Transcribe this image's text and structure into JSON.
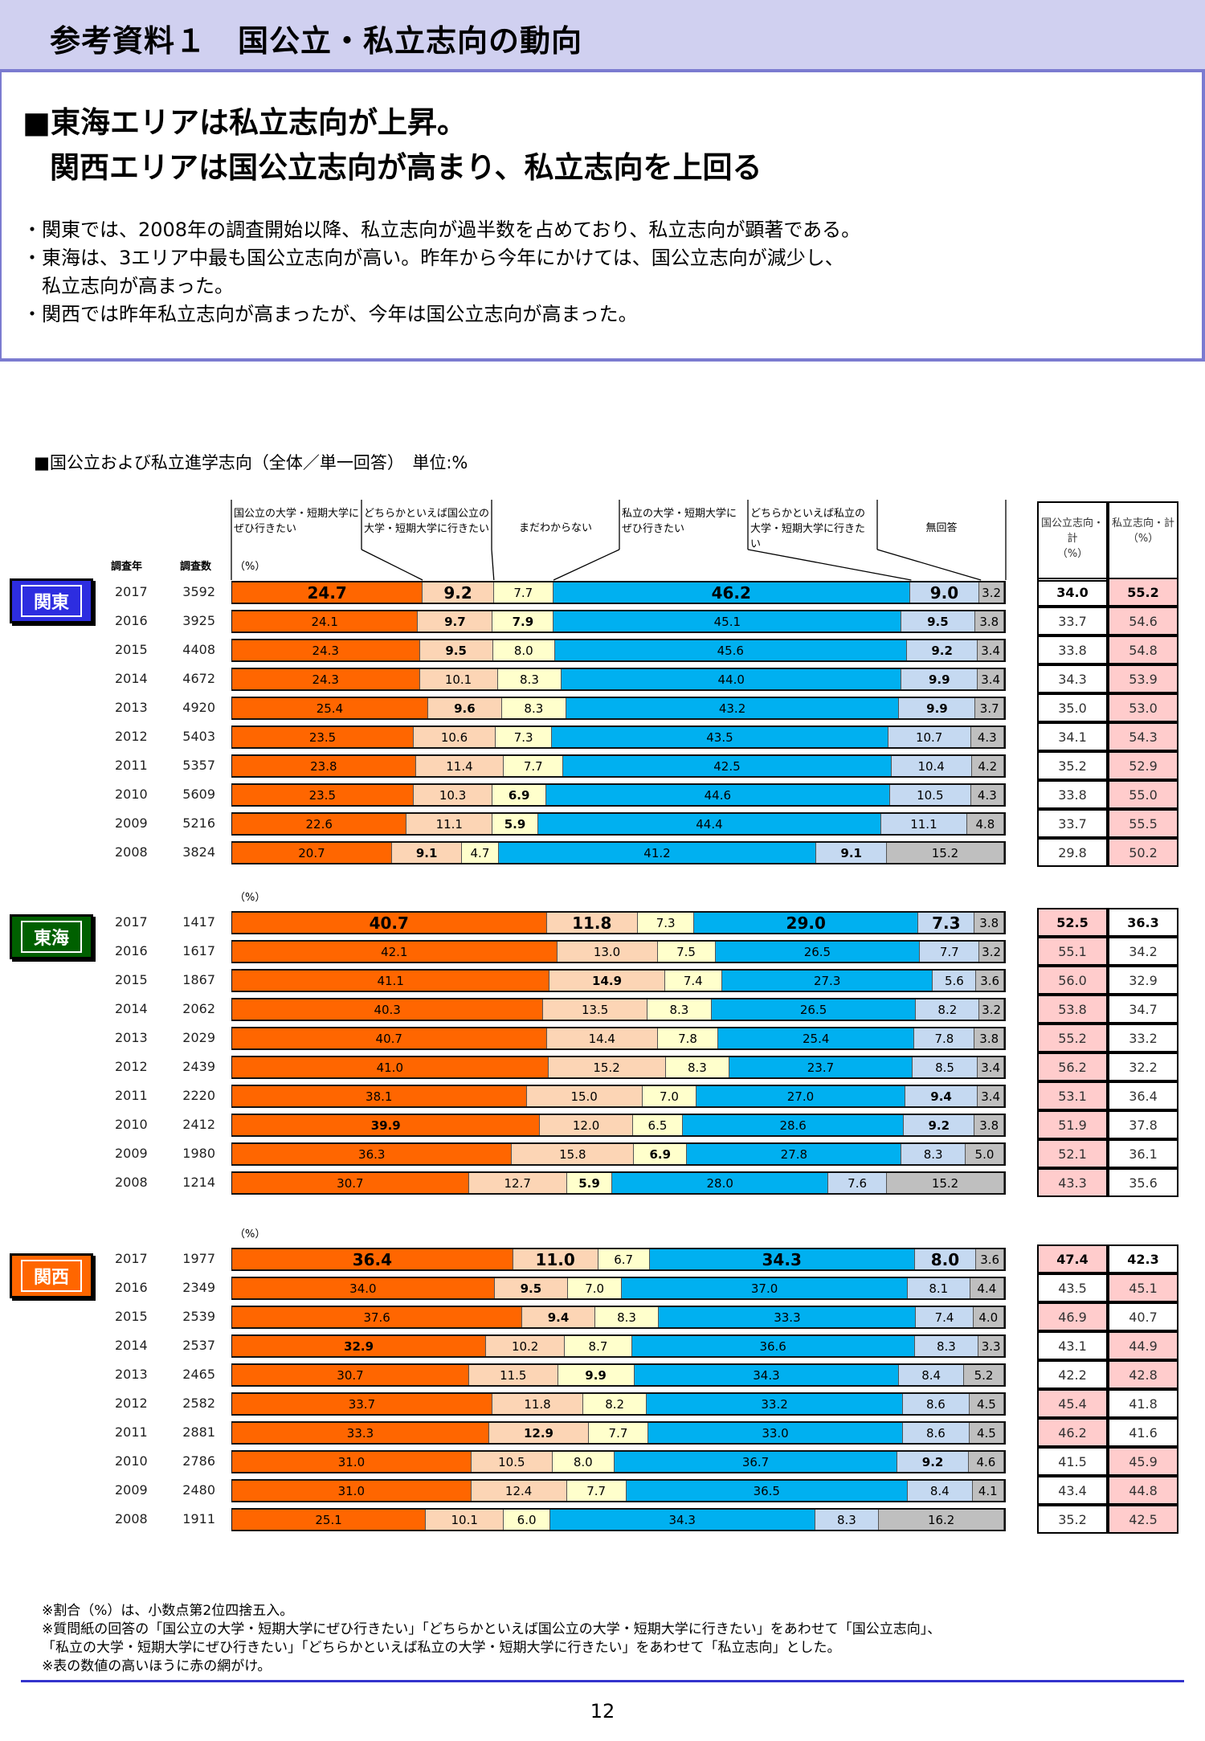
{
  "header": {
    "title": "参考資料１　国公立・私立志向の動向"
  },
  "headline": {
    "line1": "■東海エリアは私立志向が上昇。",
    "line2": "関西エリアは国公立志向が高まり、私立志向を上回る"
  },
  "bullets": [
    "・関東では、2008年の調査開始以降、私立志向が過半数を占めており、私立志向が顕著である。",
    "・東海は、3エリア中最も国公立志向が高い。昨年から今年にかけては、国公立志向が減少し、",
    "　私立志向が高まった。",
    "・関西では昨年私立志向が高まったが、今年は国公立志向が高まった。"
  ],
  "section_title": "■国公立および私立進学志向（全体／単一回答）　単位:%",
  "columns": [
    "国公立の大学・短期大学にぜひ行きたい",
    "どちらかといえば国公立の大学・短期大学に行きたい",
    "まだわからない",
    "私立の大学・短期大学にぜひ行きたい",
    "どちらかといえば私立の大学・短期大学に行きたい",
    "無回答"
  ],
  "totals_headers": [
    "国公立志向・計\n（%）",
    "私立志向・計\n（%）"
  ],
  "year_header": "調査年",
  "n_header": "調査数",
  "pct_label": "（%）",
  "colors": {
    "seg": [
      "#ff6600",
      "#fcd5b5",
      "#ffffcc",
      "#00b0f0",
      "#c5d9f1",
      "#bfbfbf"
    ],
    "highlight": "#ffcccc"
  },
  "regions": [
    {
      "name": "関東",
      "color": "#2d2de0",
      "rows": [
        {
          "year": "2017",
          "n": "3592",
          "values": [
            24.7,
            9.2,
            7.7,
            46.2,
            9.0,
            3.2
          ],
          "public": "34.0",
          "private": "55.2",
          "bold": [
            0,
            1,
            3,
            4
          ],
          "hi": "private"
        },
        {
          "year": "2016",
          "n": "3925",
          "values": [
            24.1,
            9.7,
            7.9,
            45.1,
            9.5,
            3.8
          ],
          "public": "33.7",
          "private": "54.6",
          "bold": [
            1,
            2,
            4
          ],
          "hi": "private"
        },
        {
          "year": "2015",
          "n": "4408",
          "values": [
            24.3,
            9.5,
            8.0,
            45.6,
            9.2,
            3.4
          ],
          "public": "33.8",
          "private": "54.8",
          "bold": [
            1,
            4
          ],
          "hi": "private"
        },
        {
          "year": "2014",
          "n": "4672",
          "values": [
            24.3,
            10.1,
            8.3,
            44.0,
            9.9,
            3.4
          ],
          "public": "34.3",
          "private": "53.9",
          "bold": [
            4
          ],
          "hi": "private"
        },
        {
          "year": "2013",
          "n": "4920",
          "values": [
            25.4,
            9.6,
            8.3,
            43.2,
            9.9,
            3.7
          ],
          "public": "35.0",
          "private": "53.0",
          "bold": [
            1,
            4
          ],
          "hi": "private"
        },
        {
          "year": "2012",
          "n": "5403",
          "values": [
            23.5,
            10.6,
            7.3,
            43.5,
            10.7,
            4.3
          ],
          "public": "34.1",
          "private": "54.3",
          "bold": [],
          "hi": "private"
        },
        {
          "year": "2011",
          "n": "5357",
          "values": [
            23.8,
            11.4,
            7.7,
            42.5,
            10.4,
            4.2
          ],
          "public": "35.2",
          "private": "52.9",
          "bold": [],
          "hi": "private"
        },
        {
          "year": "2010",
          "n": "5609",
          "values": [
            23.5,
            10.3,
            6.9,
            44.6,
            10.5,
            4.3
          ],
          "public": "33.8",
          "private": "55.0",
          "bold": [
            2
          ],
          "hi": "private"
        },
        {
          "year": "2009",
          "n": "5216",
          "values": [
            22.6,
            11.1,
            5.9,
            44.4,
            11.1,
            4.8
          ],
          "public": "33.7",
          "private": "55.5",
          "bold": [
            2
          ],
          "hi": "private"
        },
        {
          "year": "2008",
          "n": "3824",
          "values": [
            20.7,
            9.1,
            4.7,
            41.2,
            9.1,
            15.2
          ],
          "public": "29.8",
          "private": "50.2",
          "bold": [
            1,
            4
          ],
          "hi": "private"
        }
      ]
    },
    {
      "name": "東海",
      "color": "#006000",
      "rows": [
        {
          "year": "2017",
          "n": "1417",
          "values": [
            40.7,
            11.8,
            7.3,
            29.0,
            7.3,
            3.8
          ],
          "public": "52.5",
          "private": "36.3",
          "bold": [
            0,
            1,
            3,
            4
          ],
          "hi": "public"
        },
        {
          "year": "2016",
          "n": "1617",
          "values": [
            42.1,
            13.0,
            7.5,
            26.5,
            7.7,
            3.2
          ],
          "public": "55.1",
          "private": "34.2",
          "bold": [],
          "hi": "public"
        },
        {
          "year": "2015",
          "n": "1867",
          "values": [
            41.1,
            14.9,
            7.4,
            27.3,
            5.6,
            3.6
          ],
          "public": "56.0",
          "private": "32.9",
          "bold": [
            1
          ],
          "hi": "public"
        },
        {
          "year": "2014",
          "n": "2062",
          "values": [
            40.3,
            13.5,
            8.3,
            26.5,
            8.2,
            3.2
          ],
          "public": "53.8",
          "private": "34.7",
          "bold": [],
          "hi": "public"
        },
        {
          "year": "2013",
          "n": "2029",
          "values": [
            40.7,
            14.4,
            7.8,
            25.4,
            7.8,
            3.8
          ],
          "public": "55.2",
          "private": "33.2",
          "bold": [],
          "hi": "public"
        },
        {
          "year": "2012",
          "n": "2439",
          "values": [
            41.0,
            15.2,
            8.3,
            23.7,
            8.5,
            3.4
          ],
          "public": "56.2",
          "private": "32.2",
          "bold": [],
          "hi": "public"
        },
        {
          "year": "2011",
          "n": "2220",
          "values": [
            38.1,
            15.0,
            7.0,
            27.0,
            9.4,
            3.4
          ],
          "public": "53.1",
          "private": "36.4",
          "bold": [
            4
          ],
          "hi": "public"
        },
        {
          "year": "2010",
          "n": "2412",
          "values": [
            39.9,
            12.0,
            6.5,
            28.6,
            9.2,
            3.8
          ],
          "public": "51.9",
          "private": "37.8",
          "bold": [
            0,
            4
          ],
          "hi": "public"
        },
        {
          "year": "2009",
          "n": "1980",
          "values": [
            36.3,
            15.8,
            6.9,
            27.8,
            8.3,
            5.0
          ],
          "public": "52.1",
          "private": "36.1",
          "bold": [
            2
          ],
          "hi": "public"
        },
        {
          "year": "2008",
          "n": "1214",
          "values": [
            30.7,
            12.7,
            5.9,
            28.0,
            7.6,
            15.2
          ],
          "public": "43.3",
          "private": "35.6",
          "bold": [
            2
          ],
          "hi": "public"
        }
      ]
    },
    {
      "name": "関西",
      "color": "#ff6600",
      "rows": [
        {
          "year": "2017",
          "n": "1977",
          "values": [
            36.4,
            11.0,
            6.7,
            34.3,
            8.0,
            3.6
          ],
          "public": "47.4",
          "private": "42.3",
          "bold": [
            0,
            1,
            3,
            4
          ],
          "hi": "public"
        },
        {
          "year": "2016",
          "n": "2349",
          "values": [
            34.0,
            9.5,
            7.0,
            37.0,
            8.1,
            4.4
          ],
          "public": "43.5",
          "private": "45.1",
          "bold": [
            1
          ],
          "hi": "private"
        },
        {
          "year": "2015",
          "n": "2539",
          "values": [
            37.6,
            9.4,
            8.3,
            33.3,
            7.4,
            4.0
          ],
          "public": "46.9",
          "private": "40.7",
          "bold": [
            1
          ],
          "hi": "public"
        },
        {
          "year": "2014",
          "n": "2537",
          "values": [
            32.9,
            10.2,
            8.7,
            36.6,
            8.3,
            3.3
          ],
          "public": "43.1",
          "private": "44.9",
          "bold": [
            0
          ],
          "hi": "private"
        },
        {
          "year": "2013",
          "n": "2465",
          "values": [
            30.7,
            11.5,
            9.9,
            34.3,
            8.4,
            5.2
          ],
          "public": "42.2",
          "private": "42.8",
          "bold": [
            2
          ],
          "hi": "private"
        },
        {
          "year": "2012",
          "n": "2582",
          "values": [
            33.7,
            11.8,
            8.2,
            33.2,
            8.6,
            4.5
          ],
          "public": "45.4",
          "private": "41.8",
          "bold": [],
          "hi": "public"
        },
        {
          "year": "2011",
          "n": "2881",
          "values": [
            33.3,
            12.9,
            7.7,
            33.0,
            8.6,
            4.5
          ],
          "public": "46.2",
          "private": "41.6",
          "bold": [
            1
          ],
          "hi": "public"
        },
        {
          "year": "2010",
          "n": "2786",
          "values": [
            31.0,
            10.5,
            8.0,
            36.7,
            9.2,
            4.6
          ],
          "public": "41.5",
          "private": "45.9",
          "bold": [
            4
          ],
          "hi": "private"
        },
        {
          "year": "2009",
          "n": "2480",
          "values": [
            31.0,
            12.4,
            7.7,
            36.5,
            8.4,
            4.1
          ],
          "public": "43.4",
          "private": "44.8",
          "bold": [],
          "hi": "private"
        },
        {
          "year": "2008",
          "n": "1911",
          "values": [
            25.1,
            10.1,
            6.0,
            34.3,
            8.3,
            16.2
          ],
          "public": "35.2",
          "private": "42.5",
          "bold": [],
          "hi": "private"
        }
      ]
    }
  ],
  "notes": [
    "※割合（%）は、小数点第2位四捨五入。",
    "※質問紙の回答の「国公立の大学・短期大学にぜひ行きたい」「どちらかといえば国公立の大学・短期大学に行きたい」をあわせて「国公立志向」、",
    "「私立の大学・短期大学にぜひ行きたい」「どちらかといえば私立の大学・短期大学に行きたい」をあわせて「私立志向」とした。",
    "※表の数値の高いほうに赤の網がけ。"
  ],
  "page_number": "12"
}
